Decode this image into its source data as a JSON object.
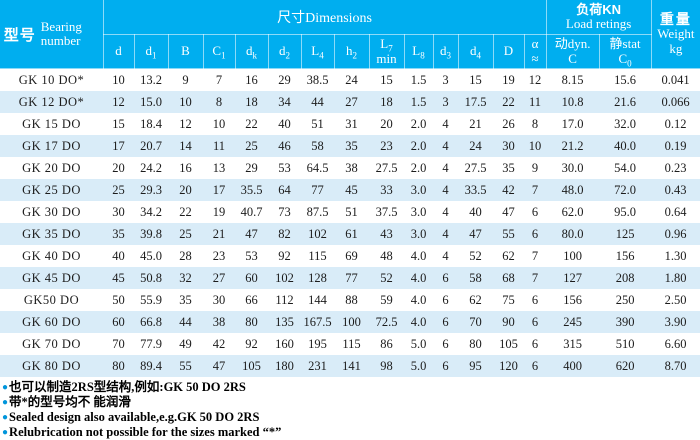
{
  "table": {
    "header": {
      "model_cn": "型号",
      "model_en": "Bearing number",
      "dimensions": "尺寸Dimensions",
      "load_cn": "负荷KN",
      "load_en": "Load retings",
      "weight_cn": "重量",
      "weight_en": "Weight",
      "weight_unit": "kg"
    },
    "sub_headers": [
      {
        "name": "d",
        "l1": "d"
      },
      {
        "name": "d1",
        "l1": "d",
        "l1s": "1"
      },
      {
        "name": "B",
        "l1": "B"
      },
      {
        "name": "C1",
        "l1": "C",
        "l1s": "1"
      },
      {
        "name": "dk",
        "l1": "d",
        "l1s": "k"
      },
      {
        "name": "d2",
        "l1": "d",
        "l1s": "2"
      },
      {
        "name": "L4",
        "l1": "L",
        "l1s": "4"
      },
      {
        "name": "h2",
        "l1": "h",
        "l1s": "2"
      },
      {
        "name": "L7min",
        "l1": "L",
        "l1s": "7",
        "l2": "min"
      },
      {
        "name": "L8",
        "l1": "L",
        "l1s": "8"
      },
      {
        "name": "d3",
        "l1": "d",
        "l1s": "3"
      },
      {
        "name": "d4",
        "l1": "d",
        "l1s": "4"
      },
      {
        "name": "D",
        "l1": "D"
      },
      {
        "name": "alpha",
        "l1": "α",
        "l2": "≈"
      },
      {
        "name": "dyn-c",
        "l1": "动dyn.",
        "l2": "C"
      },
      {
        "name": "stat-c0",
        "l1": "静stat",
        "l2": "C",
        "l2s": "0"
      }
    ],
    "rows": [
      [
        "GK 10 DO*",
        "10",
        "13.2",
        "9",
        "7",
        "16",
        "29",
        "38.5",
        "24",
        "15",
        "1.5",
        "3",
        "15",
        "19",
        "12",
        "8.15",
        "15.6",
        "0.041"
      ],
      [
        "GK 12 DO*",
        "12",
        "15.0",
        "10",
        "8",
        "18",
        "34",
        "44",
        "27",
        "18",
        "1.5",
        "3",
        "17.5",
        "22",
        "11",
        "10.8",
        "21.6",
        "0.066"
      ],
      [
        "GK 15 DO",
        "15",
        "18.4",
        "12",
        "10",
        "22",
        "40",
        "51",
        "31",
        "20",
        "2.0",
        "4",
        "21",
        "26",
        "8",
        "17.0",
        "32.0",
        "0.12"
      ],
      [
        "GK 17 DO",
        "17",
        "20.7",
        "14",
        "11",
        "25",
        "46",
        "58",
        "35",
        "23",
        "2.0",
        "4",
        "24",
        "30",
        "10",
        "21.2",
        "40.0",
        "0.19"
      ],
      [
        "GK 20 DO",
        "20",
        "24.2",
        "16",
        "13",
        "29",
        "53",
        "64.5",
        "38",
        "27.5",
        "2.0",
        "4",
        "27.5",
        "35",
        "9",
        "30.0",
        "54.0",
        "0.23"
      ],
      [
        "GK 25 DO",
        "25",
        "29.3",
        "20",
        "17",
        "35.5",
        "64",
        "77",
        "45",
        "33",
        "3.0",
        "4",
        "33.5",
        "42",
        "7",
        "48.0",
        "72.0",
        "0.43"
      ],
      [
        "GK 30 DO",
        "30",
        "34.2",
        "22",
        "19",
        "40.7",
        "73",
        "87.5",
        "51",
        "37.5",
        "3.0",
        "4",
        "40",
        "47",
        "6",
        "62.0",
        "95.0",
        "0.64"
      ],
      [
        "GK 35 DO",
        "35",
        "39.8",
        "25",
        "21",
        "47",
        "82",
        "102",
        "61",
        "43",
        "3.0",
        "4",
        "47",
        "55",
        "6",
        "80.0",
        "125",
        "0.96"
      ],
      [
        "GK 40 DO",
        "40",
        "45.0",
        "28",
        "23",
        "53",
        "92",
        "115",
        "69",
        "48",
        "4.0",
        "4",
        "52",
        "62",
        "7",
        "100",
        "156",
        "1.30"
      ],
      [
        "GK 45 DO",
        "45",
        "50.8",
        "32",
        "27",
        "60",
        "102",
        "128",
        "77",
        "52",
        "4.0",
        "6",
        "58",
        "68",
        "7",
        "127",
        "208",
        "1.80"
      ],
      [
        "GK50 DO",
        "50",
        "55.9",
        "35",
        "30",
        "66",
        "112",
        "144",
        "88",
        "59",
        "4.0",
        "6",
        "62",
        "75",
        "6",
        "156",
        "250",
        "2.50"
      ],
      [
        "GK 60 DO",
        "60",
        "66.8",
        "44",
        "38",
        "80",
        "135",
        "167.5",
        "100",
        "72.5",
        "4.0",
        "6",
        "70",
        "90",
        "6",
        "245",
        "390",
        "3.90"
      ],
      [
        "GK 70 DO",
        "70",
        "77.9",
        "49",
        "42",
        "92",
        "160",
        "195",
        "115",
        "86",
        "5.0",
        "6",
        "80",
        "105",
        "6",
        "315",
        "510",
        "6.60"
      ],
      [
        "GK 80 DO",
        "80",
        "89.4",
        "55",
        "47",
        "105",
        "180",
        "231",
        "141",
        "98",
        "5.0",
        "6",
        "95",
        "120",
        "6",
        "400",
        "620",
        "8.70"
      ]
    ]
  },
  "footer": {
    "notes": [
      "也可以制造2RS型结构,例如:GK 50 DO  2RS",
      "带*的型号均不 能润滑",
      "Sealed design also available,e.g.GK 50 DO  2RS",
      "Relubrication not possible for the sizes marked “*”"
    ]
  },
  "colors": {
    "header_bg": "#00AEEF",
    "row_alt": "#D9ECF8",
    "bullet": "#0095DB"
  }
}
